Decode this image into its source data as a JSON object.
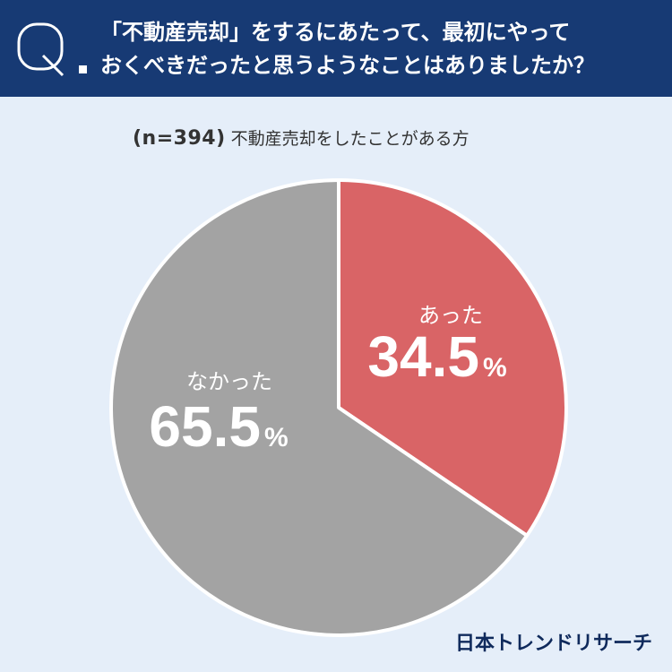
{
  "question": {
    "mark": "Q",
    "line1": "「不動産売却」をするにあたって、最初にやって",
    "line2": "おくべきだったと思うようなことはありましたか？"
  },
  "subtitle": {
    "sample": "(n=394)",
    "description": "不動産売却をしたことがある方"
  },
  "colors": {
    "header_bg": "#173a74",
    "background": "#e5eef9",
    "yes_slice": "#d96466",
    "no_slice": "#a3a3a3"
  },
  "chart_data": {
    "type": "pie",
    "slices": [
      {
        "label": "あった",
        "value": 34.5,
        "display": "34.5",
        "unit": "%",
        "color": "#d96466"
      },
      {
        "label": "なかった",
        "value": 65.5,
        "display": "65.5",
        "unit": "%",
        "color": "#a3a3a3"
      }
    ]
  },
  "brand": "日本トレンドリサーチ"
}
